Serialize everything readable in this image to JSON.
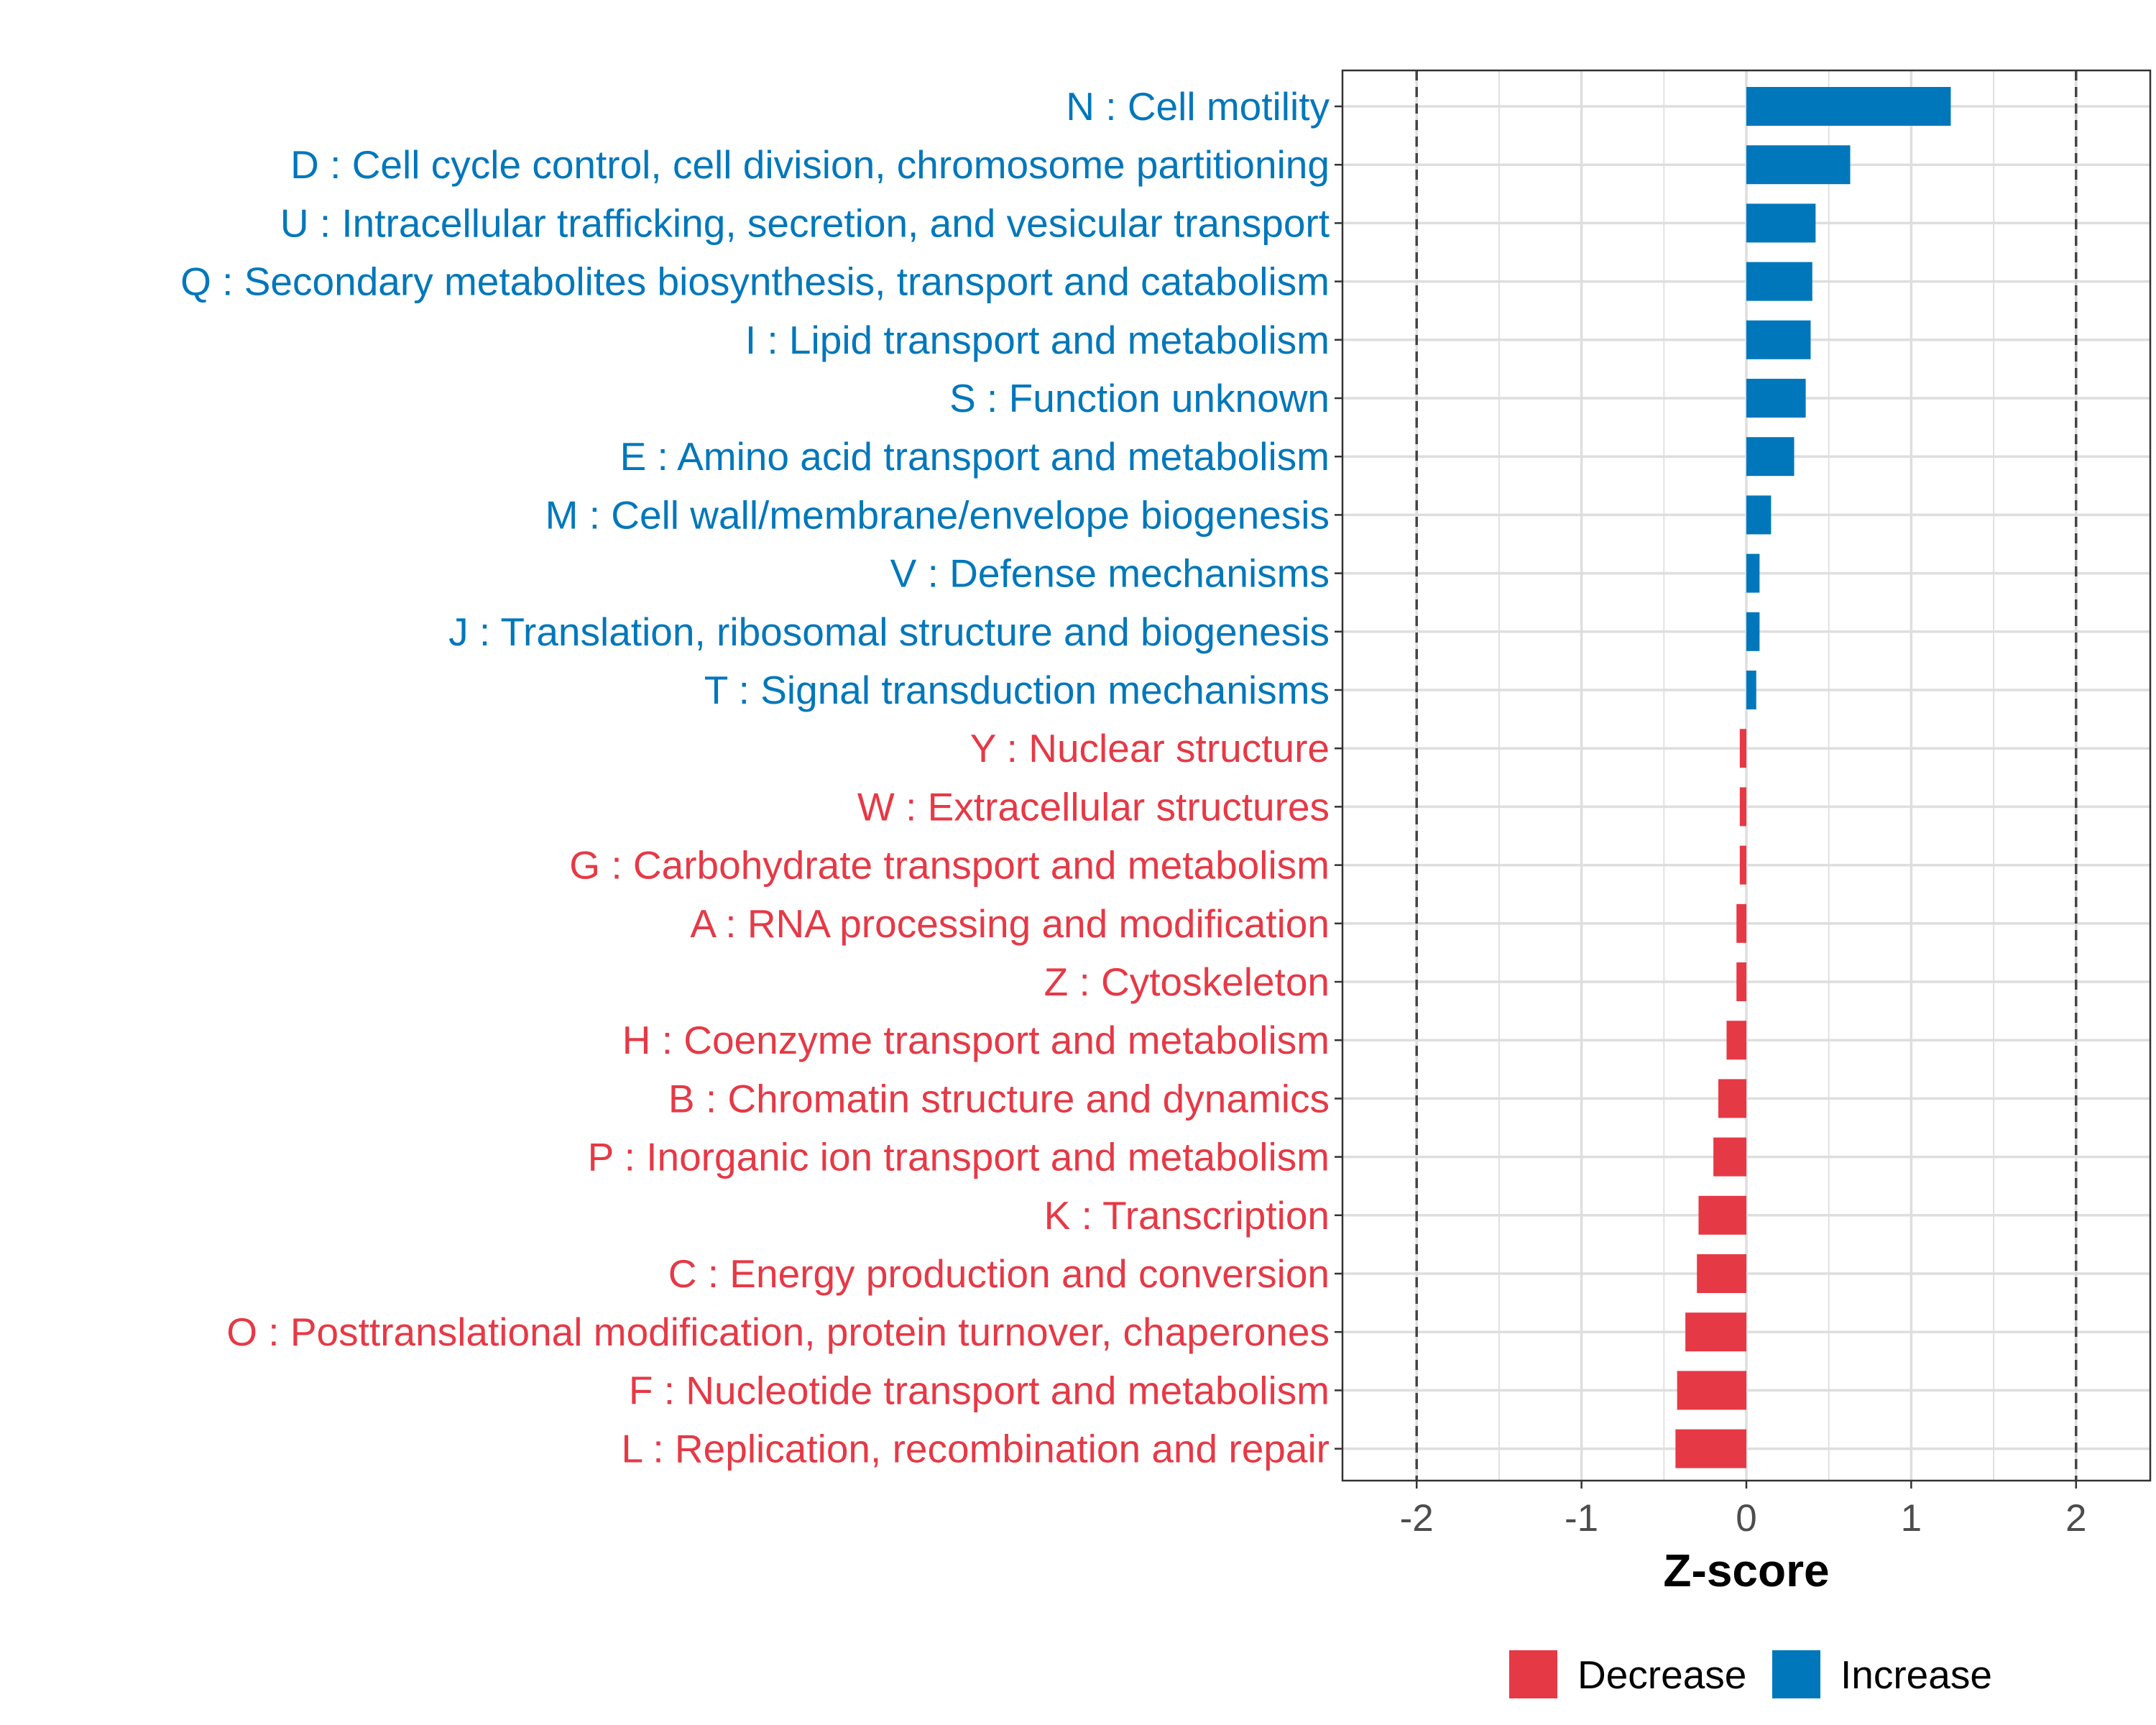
{
  "chart_data": {
    "type": "bar",
    "orientation": "horizontal",
    "title": "",
    "xlabel": "Z-score",
    "ylabel": "",
    "xlim": [
      -2.45,
      2.45
    ],
    "xticks": [
      -2,
      -1,
      0,
      1,
      2
    ],
    "xtick_labels": [
      "-2",
      "-1",
      "0",
      "1",
      "2"
    ],
    "reference_lines": [
      -2,
      2
    ],
    "grid": true,
    "legend_position": "bottom",
    "legend": [
      {
        "name": "Decrease",
        "color": "#E63946"
      },
      {
        "name": "Increase",
        "color": "#0077BB"
      }
    ],
    "categories": [
      "N : Cell motility",
      "D : Cell cycle control, cell division, chromosome partitioning",
      "U : Intracellular trafficking, secretion, and vesicular transport",
      "Q : Secondary metabolites biosynthesis, transport and catabolism",
      "I : Lipid transport and metabolism",
      "S : Function unknown",
      "E : Amino acid transport and metabolism",
      "M : Cell wall/membrane/envelope biogenesis",
      "V : Defense mechanisms",
      "J : Translation, ribosomal structure and biogenesis",
      "T : Signal transduction mechanisms",
      "Y : Nuclear structure",
      "W : Extracellular structures",
      "G : Carbohydrate transport and metabolism",
      "A : RNA processing and modification",
      "Z : Cytoskeleton",
      "H : Coenzyme transport and metabolism",
      "B : Chromatin structure and dynamics",
      "P : Inorganic ion transport and metabolism",
      "K : Transcription",
      "C : Energy production and conversion",
      "O : Posttranslational modification, protein turnover, chaperones",
      "F : Nucleotide transport and metabolism",
      "L : Replication, recombination and repair"
    ],
    "values": [
      1.24,
      0.63,
      0.42,
      0.4,
      0.39,
      0.36,
      0.29,
      0.15,
      0.08,
      0.08,
      0.06,
      -0.04,
      -0.04,
      -0.04,
      -0.06,
      -0.06,
      -0.12,
      -0.17,
      -0.2,
      -0.29,
      -0.3,
      -0.37,
      -0.42,
      -0.43
    ],
    "groups": [
      "Increase",
      "Increase",
      "Increase",
      "Increase",
      "Increase",
      "Increase",
      "Increase",
      "Increase",
      "Increase",
      "Increase",
      "Increase",
      "Decrease",
      "Decrease",
      "Decrease",
      "Decrease",
      "Decrease",
      "Decrease",
      "Decrease",
      "Decrease",
      "Decrease",
      "Decrease",
      "Decrease",
      "Decrease",
      "Decrease"
    ]
  }
}
